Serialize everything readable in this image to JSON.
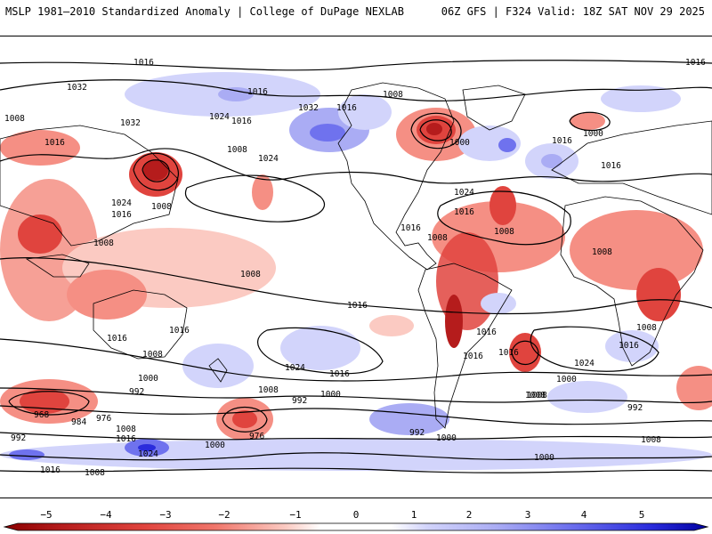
{
  "header": {
    "left_title": "MSLP 1981–2010 Standardized Anomaly | College of DuPage NEXLAB",
    "right_title": "06Z GFS | F324 Valid: 18Z SAT NOV 29 2025"
  },
  "colors": {
    "neg_strong": "#b51c1c",
    "neg_mid": "#e0443e",
    "neg_light": "#f58f84",
    "neg_faint": "#fbcac2",
    "pos_faint": "#d2d4fb",
    "pos_light": "#aaacf4",
    "pos_mid": "#6f72ee",
    "pos_strong": "#2a2cdc",
    "land_outline": "#000000"
  },
  "colorbar": {
    "ticks": [
      "−5",
      "−4",
      "−3",
      "−2",
      "−1",
      "0",
      "1",
      "2",
      "3",
      "4",
      "5"
    ]
  },
  "isobar_labels": [
    "1016",
    "1016",
    "1032",
    "1008",
    "1032",
    "1024",
    "1016",
    "1032",
    "1016",
    "1008",
    "1016",
    "1016",
    "1008",
    "1024",
    "1000",
    "1016",
    "1000",
    "1008",
    "1024",
    "1016",
    "1008",
    "1024",
    "1016",
    "1016",
    "1008",
    "1016",
    "1008",
    "1008",
    "1016",
    "1008",
    "1016",
    "1008",
    "1016",
    "1024",
    "1016",
    "1016",
    "1000",
    "992",
    "1000",
    "1008",
    "992",
    "1016",
    "1024",
    "1008",
    "1016",
    "1000",
    "1008",
    "992",
    "968",
    "984",
    "976",
    "976",
    "1008",
    "1016",
    "992",
    "1024",
    "1000",
    "992",
    "1000",
    "1016",
    "1008",
    "1000",
    "1016",
    "1008",
    "1008"
  ]
}
